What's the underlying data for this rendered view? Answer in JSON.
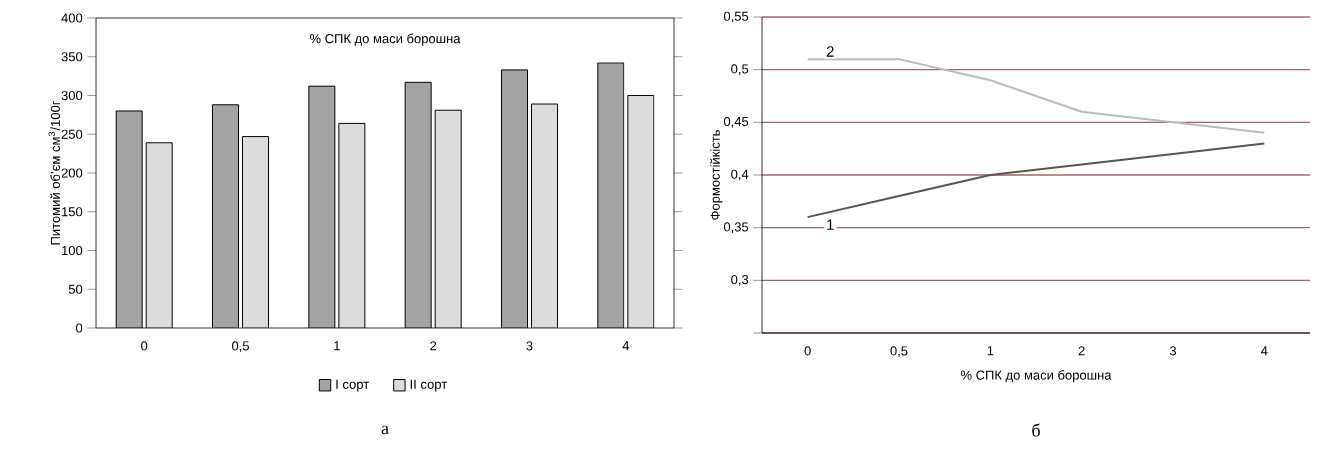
{
  "chart_data": [
    {
      "type": "bar",
      "xlabel": "% СПК до маси борошна",
      "ylabel": "Питомий об’єм см$^{3}$/100г",
      "categories": [
        "0",
        "0,5",
        "1",
        "2",
        "3",
        "4"
      ],
      "series": [
        {
          "name": "I сорт",
          "color": "#a3a3a3",
          "values": [
            280,
            288,
            312,
            317,
            333,
            342
          ]
        },
        {
          "name": "II сорт",
          "color": "#dcdcdc",
          "values": [
            239,
            247,
            264,
            281,
            289,
            300
          ]
        }
      ],
      "ylim": [
        0,
        400
      ],
      "yticks": [
        0,
        50,
        100,
        150,
        200,
        250,
        300,
        350,
        400
      ],
      "legend": "bottom",
      "annotations": [
        "а"
      ]
    },
    {
      "type": "line",
      "xlabel": "% СПК до маси борошна",
      "ylabel": "Формостійкість",
      "categories": [
        "0",
        "0,5",
        "1",
        "2",
        "3",
        "4"
      ],
      "series": [
        {
          "name": "1",
          "color": "#555555",
          "values": [
            0.36,
            0.38,
            0.4,
            0.41,
            0.42,
            0.43
          ]
        },
        {
          "name": "2",
          "color": "#bbbbbb",
          "values": [
            0.51,
            0.51,
            0.49,
            0.46,
            0.45,
            0.44
          ]
        }
      ],
      "ylim": [
        0.25,
        0.55
      ],
      "yticks": [
        {
          "value": 0.25,
          "label": null
        },
        {
          "value": 0.3,
          "label": "0,3"
        },
        {
          "value": 0.35,
          "label": "0,35"
        },
        {
          "value": 0.4,
          "label": "0,4"
        },
        {
          "value": 0.45,
          "label": "0,45"
        },
        {
          "value": 0.5,
          "label": "0,5"
        },
        {
          "value": 0.55,
          "label": "0,55"
        }
      ],
      "grid": "y",
      "annotations": [
        "б"
      ]
    }
  ]
}
